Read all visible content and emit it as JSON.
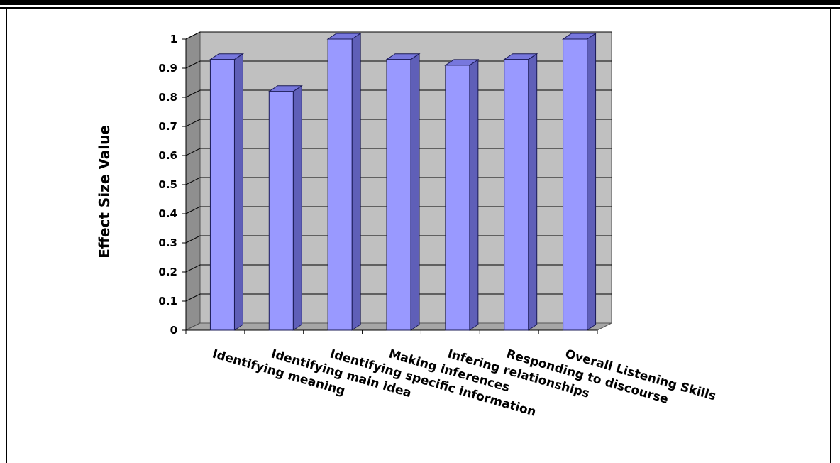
{
  "chart_data": {
    "type": "bar",
    "style": "3d-column",
    "categories": [
      "Identifying meaning",
      "Identifying main idea",
      "Identifying specific information",
      "Making inferences",
      "Infering relationships",
      "Responding to discourse",
      "Overall Listening Skills"
    ],
    "values": [
      0.93,
      0.82,
      1.0,
      0.93,
      0.91,
      0.93,
      1.0
    ],
    "title": "",
    "xlabel": "",
    "ylabel": "Effect Size Value",
    "ylim": [
      0,
      1
    ],
    "yticks": [
      "0",
      "0.1",
      "0.2",
      "0.3",
      "0.4",
      "0.5",
      "0.6",
      "0.7",
      "0.8",
      "0.9",
      "1"
    ],
    "grid": true,
    "legend": "none",
    "colors": {
      "bar_front": "#9999ff",
      "bar_top": "#7777dd",
      "bar_side": "#5f5fb8",
      "bar_outline": "#1a1a55",
      "plot_wall": "#c0c0c0",
      "plot_floor": "#a6a6a6",
      "gridline": "#000000"
    }
  }
}
